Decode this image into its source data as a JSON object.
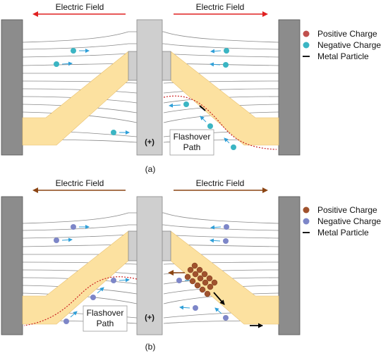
{
  "panels": [
    {
      "id": "a",
      "caption": "(a)",
      "field_left": "Electric Field",
      "field_right": "Electric Field",
      "center_polarity": "(+)",
      "flashover_line1": "Flashover",
      "flashover_line2": "Path",
      "legend": {
        "positive": "Positive Charge",
        "negative": "Negative Charge",
        "particle": "Metal Particle"
      }
    },
    {
      "id": "b",
      "caption": "(b)",
      "field_left": "Electric Field",
      "field_right": "Electric Field",
      "center_polarity": "(+)",
      "flashover_line1": "Flashover",
      "flashover_line2": "Path",
      "legend": {
        "positive": "Positive Charge",
        "negative": "Negative Charge",
        "particle": "Metal Particle"
      }
    }
  ],
  "colors": {
    "electrode": "#8c8c8c",
    "conductor": "#cfcfcf",
    "insulator": "#fce1a0",
    "field_arrow_a": "#e02020",
    "field_arrow_b": "#8b4513",
    "positive_charge": "#c0504d",
    "positive_charge_b": "#a0522d",
    "negative_charge_a": "#3bb5c3",
    "negative_charge_b": "#7d86c8",
    "flashover": "#cc2222",
    "field_lines": "#777777"
  }
}
